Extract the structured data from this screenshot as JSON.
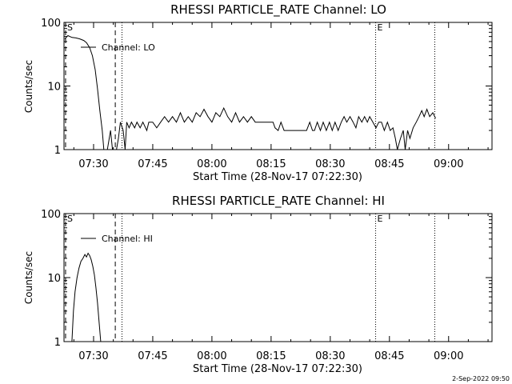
{
  "footer_timestamp": "2-Sep-2022 09:50",
  "chart_data": [
    {
      "type": "line",
      "title": "RHESSI PARTICLE_RATE Channel: LO",
      "xlabel": "Start Time (28-Nov-17 07:22:30)",
      "ylabel": "Counts/sec",
      "yscale": "log",
      "ylim": [
        1,
        100
      ],
      "xlim_minutes": [
        -7.5,
        101
      ],
      "x_ticks": [
        {
          "m": 0,
          "label": "07:30"
        },
        {
          "m": 15,
          "label": "07:45"
        },
        {
          "m": 30,
          "label": "08:00"
        },
        {
          "m": 45,
          "label": "08:15"
        },
        {
          "m": 60,
          "label": "08:30"
        },
        {
          "m": 75,
          "label": "08:45"
        },
        {
          "m": 90,
          "label": "09:00"
        }
      ],
      "y_ticks": [
        {
          "v": 1,
          "label": "1"
        },
        {
          "v": 10,
          "label": "10"
        },
        {
          "v": 100,
          "label": "100"
        }
      ],
      "legend": {
        "label": "Channel: LO",
        "position": "top-left"
      },
      "markers": [
        {
          "m": -7.1,
          "style": "dashed",
          "label": "S"
        },
        {
          "m": 5.5,
          "style": "dashed",
          "label": ""
        },
        {
          "m": 7.2,
          "style": "dotted",
          "label": ""
        },
        {
          "m": 71.5,
          "style": "dotted",
          "label": "E"
        },
        {
          "m": 86.5,
          "style": "dotted",
          "label": ""
        }
      ],
      "series": [
        {
          "name": "Channel: LO",
          "points": [
            [
              -7.3,
              55
            ],
            [
              -6.5,
              62
            ],
            [
              -5.5,
              58
            ],
            [
              -4.5,
              57
            ],
            [
              -3.5,
              55
            ],
            [
              -2.5,
              52
            ],
            [
              -1.8,
              48
            ],
            [
              -1.0,
              40
            ],
            [
              -0.3,
              30
            ],
            [
              0.4,
              18
            ],
            [
              1.0,
              9
            ],
            [
              1.6,
              4
            ],
            [
              2.2,
              2
            ],
            [
              2.6,
              1
            ],
            [
              3.5,
              1
            ],
            [
              4.3,
              2
            ],
            [
              4.8,
              1
            ],
            [
              5.8,
              1
            ],
            [
              6.3,
              1.5
            ],
            [
              6.8,
              2.7
            ],
            [
              7.5,
              2
            ],
            [
              8.0,
              1
            ],
            [
              8.4,
              2.7
            ],
            [
              9.0,
              2.2
            ],
            [
              9.6,
              2.7
            ],
            [
              10.4,
              2.2
            ],
            [
              11.0,
              2.7
            ],
            [
              11.8,
              2.2
            ],
            [
              12.5,
              2.7
            ],
            [
              13.5,
              2
            ],
            [
              14.0,
              2.7
            ],
            [
              15.0,
              2.7
            ],
            [
              16.0,
              2.2
            ],
            [
              17.0,
              2.7
            ],
            [
              18.0,
              3.3
            ],
            [
              19.0,
              2.7
            ],
            [
              20.0,
              3.3
            ],
            [
              21.0,
              2.7
            ],
            [
              22.0,
              3.8
            ],
            [
              23.0,
              2.7
            ],
            [
              24.0,
              3.3
            ],
            [
              25.0,
              2.7
            ],
            [
              26.0,
              3.8
            ],
            [
              27.0,
              3.3
            ],
            [
              28.0,
              4.3
            ],
            [
              29.0,
              3.3
            ],
            [
              30.0,
              2.7
            ],
            [
              31.0,
              3.8
            ],
            [
              32.0,
              3.3
            ],
            [
              33.0,
              4.5
            ],
            [
              34.0,
              3.3
            ],
            [
              35.0,
              2.7
            ],
            [
              36.0,
              3.8
            ],
            [
              37.0,
              2.7
            ],
            [
              38.0,
              3.3
            ],
            [
              39.0,
              2.7
            ],
            [
              40.0,
              3.3
            ],
            [
              41.0,
              2.7
            ],
            [
              42.0,
              2.7
            ],
            [
              43.0,
              2.7
            ],
            [
              44.0,
              2.7
            ],
            [
              45.0,
              2.7
            ],
            [
              45.5,
              2.7
            ],
            [
              46.0,
              2.2
            ],
            [
              46.8,
              2.0
            ],
            [
              47.5,
              2.7
            ],
            [
              48.3,
              2.0
            ],
            [
              49.0,
              2.0
            ],
            [
              50.0,
              2.0
            ],
            [
              51.0,
              2.0
            ],
            [
              52.0,
              2.0
            ],
            [
              53.0,
              2.0
            ],
            [
              54.0,
              2.0
            ],
            [
              54.8,
              2.7
            ],
            [
              55.5,
              2.0
            ],
            [
              56.0,
              2.0
            ],
            [
              56.7,
              2.7
            ],
            [
              57.5,
              2.0
            ],
            [
              58.2,
              2.7
            ],
            [
              59.0,
              2.0
            ],
            [
              59.8,
              2.7
            ],
            [
              60.5,
              2.0
            ],
            [
              61.2,
              2.7
            ],
            [
              62.0,
              2.0
            ],
            [
              62.8,
              2.7
            ],
            [
              63.5,
              3.3
            ],
            [
              64.2,
              2.7
            ],
            [
              65.0,
              3.3
            ],
            [
              65.8,
              2.7
            ],
            [
              66.5,
              2.2
            ],
            [
              67.2,
              3.3
            ],
            [
              68.0,
              2.7
            ],
            [
              68.7,
              3.3
            ],
            [
              69.4,
              2.7
            ],
            [
              70.0,
              3.3
            ],
            [
              70.8,
              2.7
            ],
            [
              71.6,
              2.2
            ],
            [
              72.3,
              2.7
            ],
            [
              73.0,
              2.7
            ],
            [
              73.7,
              2.0
            ],
            [
              74.5,
              2.7
            ],
            [
              75.2,
              2.0
            ],
            [
              75.9,
              2.2
            ],
            [
              76.5,
              1.5
            ],
            [
              77.0,
              1
            ],
            [
              77.8,
              1.5
            ],
            [
              78.5,
              2
            ],
            [
              79.0,
              1
            ],
            [
              79.6,
              2
            ],
            [
              80.2,
              1.5
            ],
            [
              81.0,
              2.2
            ],
            [
              81.8,
              2.7
            ],
            [
              82.5,
              3.3
            ],
            [
              83.2,
              4.1
            ],
            [
              83.8,
              3.3
            ],
            [
              84.5,
              4.3
            ],
            [
              85.2,
              3.3
            ],
            [
              86.0,
              3.8
            ],
            [
              86.7,
              3.1
            ]
          ]
        }
      ]
    },
    {
      "type": "line",
      "title": "RHESSI PARTICLE_RATE Channel: HI",
      "xlabel": "Start Time (28-Nov-17 07:22:30)",
      "ylabel": "Counts/sec",
      "yscale": "log",
      "ylim": [
        1,
        100
      ],
      "xlim_minutes": [
        -7.5,
        101
      ],
      "x_ticks": [
        {
          "m": 0,
          "label": "07:30"
        },
        {
          "m": 15,
          "label": "07:45"
        },
        {
          "m": 30,
          "label": "08:00"
        },
        {
          "m": 45,
          "label": "08:15"
        },
        {
          "m": 60,
          "label": "08:30"
        },
        {
          "m": 75,
          "label": "08:45"
        },
        {
          "m": 90,
          "label": "09:00"
        }
      ],
      "y_ticks": [
        {
          "v": 1,
          "label": "1"
        },
        {
          "v": 10,
          "label": "10"
        },
        {
          "v": 100,
          "label": "100"
        }
      ],
      "legend": {
        "label": "Channel: HI",
        "position": "top-left"
      },
      "markers": [
        {
          "m": -7.1,
          "style": "dashed",
          "label": "S"
        },
        {
          "m": 5.5,
          "style": "dashed",
          "label": ""
        },
        {
          "m": 7.2,
          "style": "dotted",
          "label": ""
        },
        {
          "m": 71.5,
          "style": "dotted",
          "label": "E"
        },
        {
          "m": 86.5,
          "style": "dotted",
          "label": ""
        }
      ],
      "series": [
        {
          "name": "Channel: HI",
          "points": [
            [
              -5.5,
              1
            ],
            [
              -5.1,
              3
            ],
            [
              -4.7,
              6
            ],
            [
              -4.2,
              10
            ],
            [
              -3.7,
              14
            ],
            [
              -3.2,
              18
            ],
            [
              -2.7,
              20
            ],
            [
              -2.2,
              23
            ],
            [
              -1.8,
              21
            ],
            [
              -1.4,
              24
            ],
            [
              -1.0,
              22
            ],
            [
              -0.6,
              19
            ],
            [
              -0.2,
              15
            ],
            [
              0.2,
              11
            ],
            [
              0.6,
              7
            ],
            [
              1.0,
              4
            ],
            [
              1.4,
              2
            ],
            [
              1.8,
              1
            ]
          ]
        }
      ]
    }
  ]
}
